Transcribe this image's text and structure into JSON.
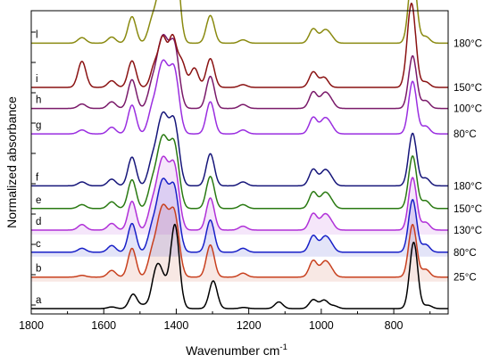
{
  "chart_data": {
    "type": "line",
    "title": "",
    "xlabel": "Wavenumber cm",
    "xlabel_sup": "-1",
    "ylabel": "Normalized absorbance",
    "xlim": [
      1800,
      650
    ],
    "x_reversed": true,
    "x_ticks": [
      1800,
      1600,
      1400,
      1200,
      1000,
      800
    ],
    "y_ticks_labeled": false,
    "grid": false,
    "legend": "none",
    "series": [
      {
        "id": "a",
        "letter": "a",
        "temp": "",
        "color": "#000000",
        "baseline": 0.0,
        "shade": false,
        "peaks": [
          [
            1578,
            0.03
          ],
          [
            1519,
            0.26
          ],
          [
            1490,
            0.06
          ],
          [
            1461,
            0.36
          ],
          [
            1450,
            0.38
          ],
          [
            1440,
            0.3
          ],
          [
            1425,
            0.25
          ],
          [
            1405,
            1.25
          ],
          [
            1395,
            0.33
          ],
          [
            1298,
            0.5
          ],
          [
            1214,
            0.02
          ],
          [
            1117,
            0.12
          ],
          [
            1022,
            0.16
          ],
          [
            992,
            0.15
          ],
          [
            965,
            0.05
          ],
          [
            745,
            1.2
          ],
          [
            706,
            0.06
          ]
        ]
      },
      {
        "id": "b",
        "letter": "b",
        "temp": "25°C",
        "color": "#c8401e",
        "baseline": 0.57,
        "shade": true,
        "peaks": [
          [
            1660,
            0.03
          ],
          [
            1578,
            0.12
          ],
          [
            1522,
            0.52
          ],
          [
            1468,
            0.38
          ],
          [
            1450,
            0.55
          ],
          [
            1437,
            0.7
          ],
          [
            1425,
            0.55
          ],
          [
            1408,
            0.85
          ],
          [
            1396,
            0.4
          ],
          [
            1306,
            0.58
          ],
          [
            1216,
            0.07
          ],
          [
            1022,
            0.3
          ],
          [
            992,
            0.24
          ],
          [
            975,
            0.14
          ],
          [
            748,
            0.95
          ],
          [
            712,
            0.14
          ]
        ]
      },
      {
        "id": "c",
        "letter": "c",
        "temp": "80°C",
        "color": "#1820c8",
        "baseline": 1.02,
        "shade": true,
        "peaks": [
          [
            1660,
            0.07
          ],
          [
            1578,
            0.12
          ],
          [
            1522,
            0.52
          ],
          [
            1468,
            0.38
          ],
          [
            1450,
            0.55
          ],
          [
            1437,
            0.72
          ],
          [
            1425,
            0.55
          ],
          [
            1408,
            0.85
          ],
          [
            1396,
            0.4
          ],
          [
            1306,
            0.58
          ],
          [
            1216,
            0.07
          ],
          [
            1022,
            0.3
          ],
          [
            992,
            0.24
          ],
          [
            975,
            0.14
          ],
          [
            748,
            0.95
          ],
          [
            712,
            0.14
          ]
        ]
      },
      {
        "id": "d",
        "letter": "d",
        "temp": "130°C",
        "color": "#b030d8",
        "baseline": 1.42,
        "shade": true,
        "peaks": [
          [
            1660,
            0.1
          ],
          [
            1578,
            0.12
          ],
          [
            1522,
            0.52
          ],
          [
            1468,
            0.38
          ],
          [
            1450,
            0.55
          ],
          [
            1437,
            0.72
          ],
          [
            1425,
            0.55
          ],
          [
            1408,
            0.85
          ],
          [
            1396,
            0.4
          ],
          [
            1306,
            0.58
          ],
          [
            1216,
            0.07
          ],
          [
            1022,
            0.3
          ],
          [
            992,
            0.24
          ],
          [
            975,
            0.14
          ],
          [
            748,
            0.95
          ],
          [
            712,
            0.14
          ]
        ]
      },
      {
        "id": "e",
        "letter": "e",
        "temp": "150°C",
        "color": "#2a7a12",
        "baseline": 1.81,
        "shade": false,
        "peaks": [
          [
            1660,
            0.07
          ],
          [
            1578,
            0.12
          ],
          [
            1522,
            0.52
          ],
          [
            1468,
            0.38
          ],
          [
            1450,
            0.55
          ],
          [
            1437,
            0.72
          ],
          [
            1425,
            0.55
          ],
          [
            1408,
            0.85
          ],
          [
            1396,
            0.4
          ],
          [
            1306,
            0.58
          ],
          [
            1216,
            0.07
          ],
          [
            1022,
            0.3
          ],
          [
            992,
            0.24
          ],
          [
            975,
            0.14
          ],
          [
            748,
            0.95
          ],
          [
            712,
            0.14
          ]
        ]
      },
      {
        "id": "f",
        "letter": "f",
        "temp": "180°C",
        "color": "#16167a",
        "baseline": 2.22,
        "shade": false,
        "peaks": [
          [
            1660,
            0.07
          ],
          [
            1578,
            0.12
          ],
          [
            1522,
            0.52
          ],
          [
            1468,
            0.38
          ],
          [
            1450,
            0.55
          ],
          [
            1437,
            0.72
          ],
          [
            1425,
            0.55
          ],
          [
            1408,
            0.85
          ],
          [
            1396,
            0.4
          ],
          [
            1306,
            0.58
          ],
          [
            1216,
            0.07
          ],
          [
            1022,
            0.3
          ],
          [
            992,
            0.24
          ],
          [
            975,
            0.14
          ],
          [
            748,
            0.95
          ],
          [
            712,
            0.14
          ]
        ]
      },
      {
        "id": "g",
        "letter": "g",
        "temp": "80°C",
        "color": "#9a2ee0",
        "baseline": 3.16,
        "shade": false,
        "peaks": [
          [
            1660,
            0.07
          ],
          [
            1578,
            0.12
          ],
          [
            1522,
            0.52
          ],
          [
            1468,
            0.38
          ],
          [
            1450,
            0.55
          ],
          [
            1437,
            0.72
          ],
          [
            1425,
            0.55
          ],
          [
            1408,
            0.85
          ],
          [
            1396,
            0.4
          ],
          [
            1306,
            0.58
          ],
          [
            1216,
            0.07
          ],
          [
            1022,
            0.3
          ],
          [
            992,
            0.24
          ],
          [
            975,
            0.14
          ],
          [
            748,
            0.95
          ],
          [
            712,
            0.14
          ]
        ]
      },
      {
        "id": "h",
        "letter": "h",
        "temp": "100°C",
        "color": "#7a1a6a",
        "baseline": 3.62,
        "shade": false,
        "peaks": [
          [
            1660,
            0.08
          ],
          [
            1578,
            0.12
          ],
          [
            1522,
            0.52
          ],
          [
            1468,
            0.38
          ],
          [
            1450,
            0.55
          ],
          [
            1437,
            0.72
          ],
          [
            1425,
            0.55
          ],
          [
            1408,
            0.85
          ],
          [
            1396,
            0.4
          ],
          [
            1306,
            0.58
          ],
          [
            1216,
            0.07
          ],
          [
            1022,
            0.3
          ],
          [
            992,
            0.24
          ],
          [
            975,
            0.14
          ],
          [
            748,
            0.95
          ],
          [
            712,
            0.14
          ]
        ]
      },
      {
        "id": "i",
        "letter": "i",
        "temp": "150°C",
        "color": "#8a1212",
        "baseline": 4.0,
        "shade": false,
        "peaks": [
          [
            1660,
            0.47
          ],
          [
            1578,
            0.12
          ],
          [
            1522,
            0.48
          ],
          [
            1460,
            0.38
          ],
          [
            1437,
            0.85
          ],
          [
            1410,
            0.88
          ],
          [
            1385,
            0.45
          ],
          [
            1350,
            0.35
          ],
          [
            1306,
            0.52
          ],
          [
            1216,
            0.05
          ],
          [
            1022,
            0.28
          ],
          [
            992,
            0.18
          ],
          [
            755,
            0.72
          ],
          [
            748,
            0.88
          ],
          [
            712,
            0.1
          ]
        ]
      },
      {
        "id": "l",
        "letter": "l",
        "temp": "180°C",
        "color": "#8a8a10",
        "baseline": 4.8,
        "shade": false,
        "peaks": [
          [
            1660,
            0.1
          ],
          [
            1578,
            0.11
          ],
          [
            1522,
            0.48
          ],
          [
            1468,
            0.34
          ],
          [
            1450,
            0.48
          ],
          [
            1437,
            0.66
          ],
          [
            1425,
            0.5
          ],
          [
            1405,
            1.4
          ],
          [
            1396,
            0.38
          ],
          [
            1306,
            0.5
          ],
          [
            1216,
            0.06
          ],
          [
            1022,
            0.26
          ],
          [
            992,
            0.2
          ],
          [
            975,
            0.12
          ],
          [
            748,
            1.3
          ],
          [
            712,
            0.12
          ]
        ]
      }
    ]
  }
}
